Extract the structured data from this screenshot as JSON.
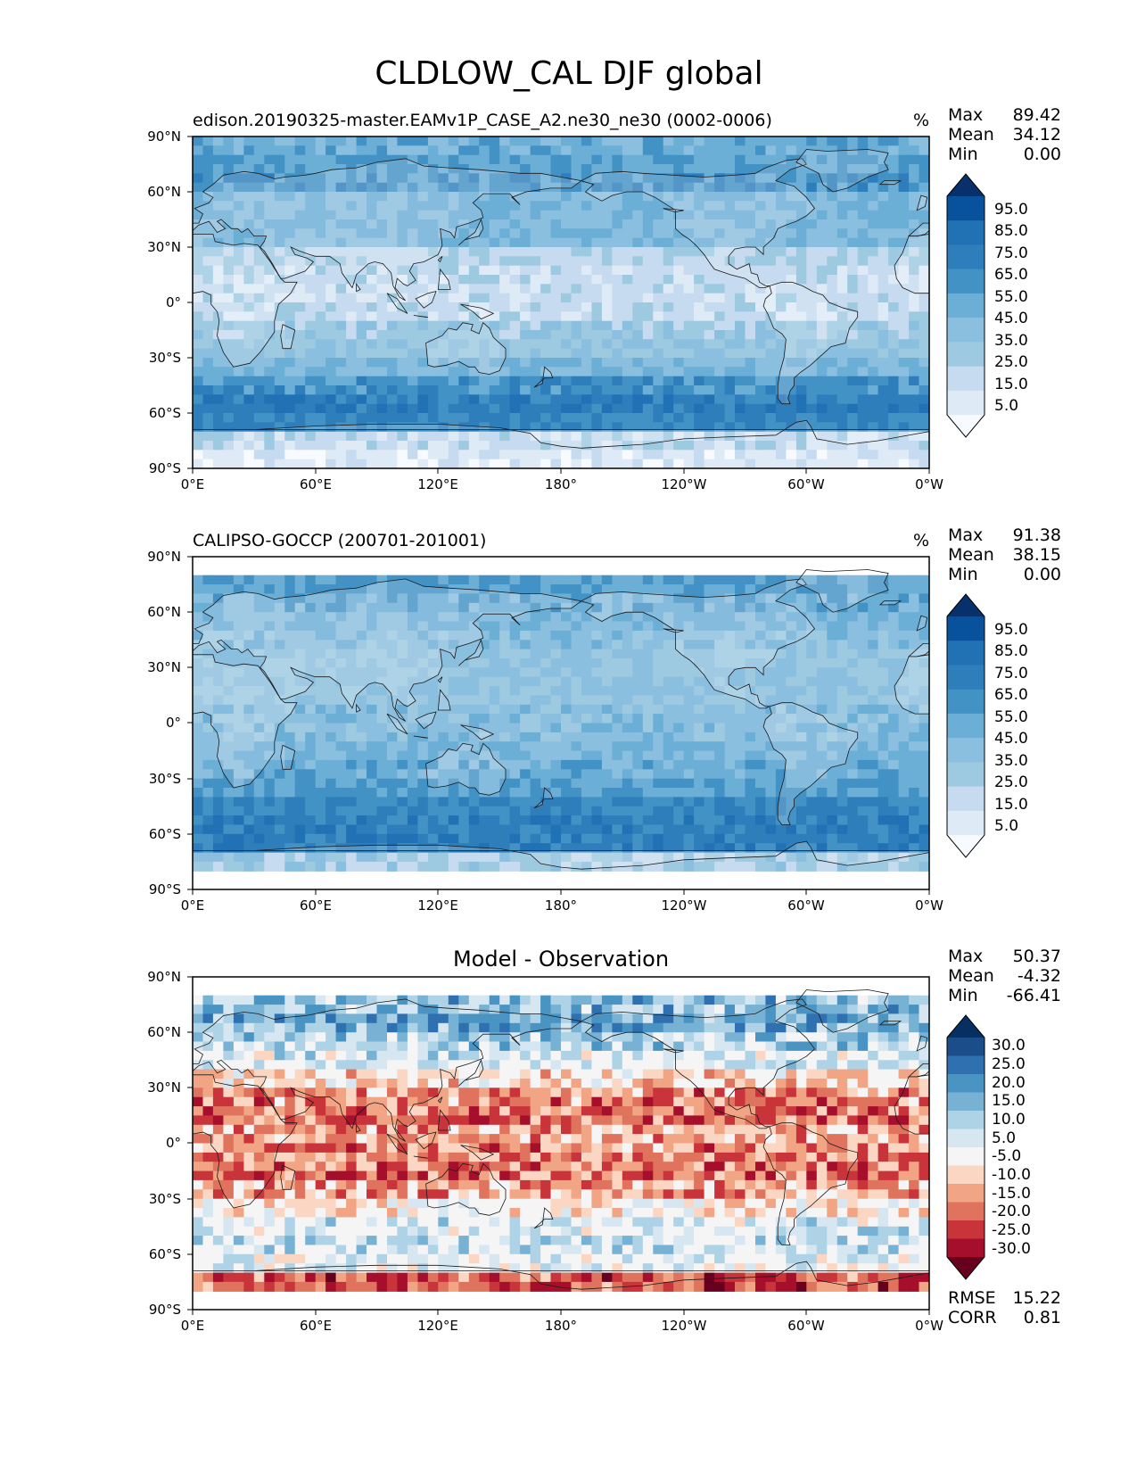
{
  "figure": {
    "title": "CLDLOW_CAL DJF global"
  },
  "colors": {
    "blues": [
      "#f7fbff",
      "#deebf7",
      "#c6dbef",
      "#9ecae1",
      "#8bbfdf",
      "#6baed6",
      "#4292c6",
      "#2f7ebc",
      "#2171b5",
      "#08519c",
      "#08306b"
    ],
    "rdbu": [
      "#67001f",
      "#a50f2c",
      "#c9343a",
      "#e0735e",
      "#f1a584",
      "#fbd6c3",
      "#f5f5f5",
      "#d6e7f1",
      "#aed2e6",
      "#77b2d5",
      "#4a94c4",
      "#2f70b1",
      "#1b4d8b",
      "#053061"
    ],
    "land_outline": "#1a1a1a"
  },
  "chart_data": [
    {
      "type": "heatmap",
      "id": "model",
      "title": "edison.20190325-master.EAMv1P_CASE_A2.ne30_ne30 (0002-0006)",
      "units": "%",
      "stats": {
        "max_label": "Max",
        "max": "89.42",
        "mean_label": "Mean",
        "mean": "34.12",
        "min_label": "Min",
        "min": "0.00"
      },
      "x_ticks": [
        "0°E",
        "60°E",
        "120°E",
        "180°",
        "120°W",
        "60°W",
        "0°W"
      ],
      "y_ticks": [
        "90°N",
        "60°N",
        "30°N",
        "0°",
        "30°S",
        "60°S",
        "90°S"
      ],
      "xlim": [
        0,
        360
      ],
      "ylim": [
        -90,
        90
      ],
      "colorbar": {
        "colormap": "Blues",
        "ticks": [
          "95.0",
          "85.0",
          "75.0",
          "65.0",
          "55.0",
          "45.0",
          "35.0",
          "25.0",
          "15.0",
          "5.0"
        ],
        "extend": "both"
      },
      "lat_band_means": [
        [
          85,
          50
        ],
        [
          75,
          55
        ],
        [
          65,
          60
        ],
        [
          55,
          45
        ],
        [
          45,
          45
        ],
        [
          35,
          45
        ],
        [
          25,
          25
        ],
        [
          15,
          20
        ],
        [
          5,
          18
        ],
        [
          -5,
          20
        ],
        [
          -15,
          30
        ],
        [
          -25,
          35
        ],
        [
          -35,
          45
        ],
        [
          -45,
          60
        ],
        [
          -55,
          70
        ],
        [
          -65,
          65
        ],
        [
          -75,
          20
        ],
        [
          -85,
          10
        ]
      ]
    },
    {
      "type": "heatmap",
      "id": "obs",
      "title": "CALIPSO-GOCCP (200701-201001)",
      "units": "%",
      "stats": {
        "max_label": "Max",
        "max": "91.38",
        "mean_label": "Mean",
        "mean": "38.15",
        "min_label": "Min",
        "min": "0.00"
      },
      "x_ticks": [
        "0°E",
        "60°E",
        "120°E",
        "180°",
        "120°W",
        "60°W",
        "0°W"
      ],
      "y_ticks": [
        "90°N",
        "60°N",
        "30°N",
        "0°",
        "30°S",
        "60°S",
        "90°S"
      ],
      "xlim": [
        0,
        360
      ],
      "ylim": [
        -90,
        90
      ],
      "data_lat_range": [
        -82,
        82
      ],
      "colorbar": {
        "colormap": "Blues",
        "ticks": [
          "95.0",
          "85.0",
          "75.0",
          "65.0",
          "55.0",
          "45.0",
          "35.0",
          "25.0",
          "15.0",
          "5.0"
        ],
        "extend": "both"
      },
      "lat_band_means": [
        [
          75,
          55
        ],
        [
          65,
          50
        ],
        [
          55,
          45
        ],
        [
          45,
          40
        ],
        [
          35,
          35
        ],
        [
          25,
          35
        ],
        [
          15,
          35
        ],
        [
          5,
          40
        ],
        [
          -5,
          40
        ],
        [
          -15,
          45
        ],
        [
          -25,
          50
        ],
        [
          -35,
          55
        ],
        [
          -45,
          65
        ],
        [
          -55,
          70
        ],
        [
          -65,
          70
        ],
        [
          -75,
          30
        ]
      ]
    },
    {
      "type": "heatmap",
      "id": "diff",
      "title": "Model - Observation",
      "stats": {
        "max_label": "Max",
        "max": "50.37",
        "mean_label": "Mean",
        "mean": "-4.32",
        "min_label": "Min",
        "min": "-66.41"
      },
      "metrics": {
        "rmse_label": "RMSE",
        "rmse": "15.22",
        "corr_label": "CORR",
        "corr": "0.81"
      },
      "x_ticks": [
        "0°E",
        "60°E",
        "120°E",
        "180°",
        "120°W",
        "60°W",
        "0°W"
      ],
      "y_ticks": [
        "90°N",
        "60°N",
        "30°N",
        "0°",
        "30°S",
        "60°S",
        "90°S"
      ],
      "xlim": [
        0,
        360
      ],
      "ylim": [
        -90,
        90
      ],
      "data_lat_range": [
        -82,
        82
      ],
      "colorbar": {
        "colormap": "RdBu",
        "ticks": [
          "30.0",
          "25.0",
          "20.0",
          "15.0",
          "10.0",
          "5.0",
          "-5.0",
          "-10.0",
          "-15.0",
          "-20.0",
          "-25.0",
          "-30.0"
        ],
        "extend": "both"
      },
      "lat_band_means": [
        [
          75,
          15
        ],
        [
          65,
          18
        ],
        [
          55,
          12
        ],
        [
          45,
          5
        ],
        [
          35,
          -5
        ],
        [
          25,
          -15
        ],
        [
          15,
          -18
        ],
        [
          5,
          -12
        ],
        [
          -5,
          -15
        ],
        [
          -15,
          -18
        ],
        [
          -25,
          -12
        ],
        [
          -35,
          -2
        ],
        [
          -45,
          5
        ],
        [
          -55,
          8
        ],
        [
          -65,
          3
        ],
        [
          -75,
          -20
        ]
      ]
    }
  ]
}
